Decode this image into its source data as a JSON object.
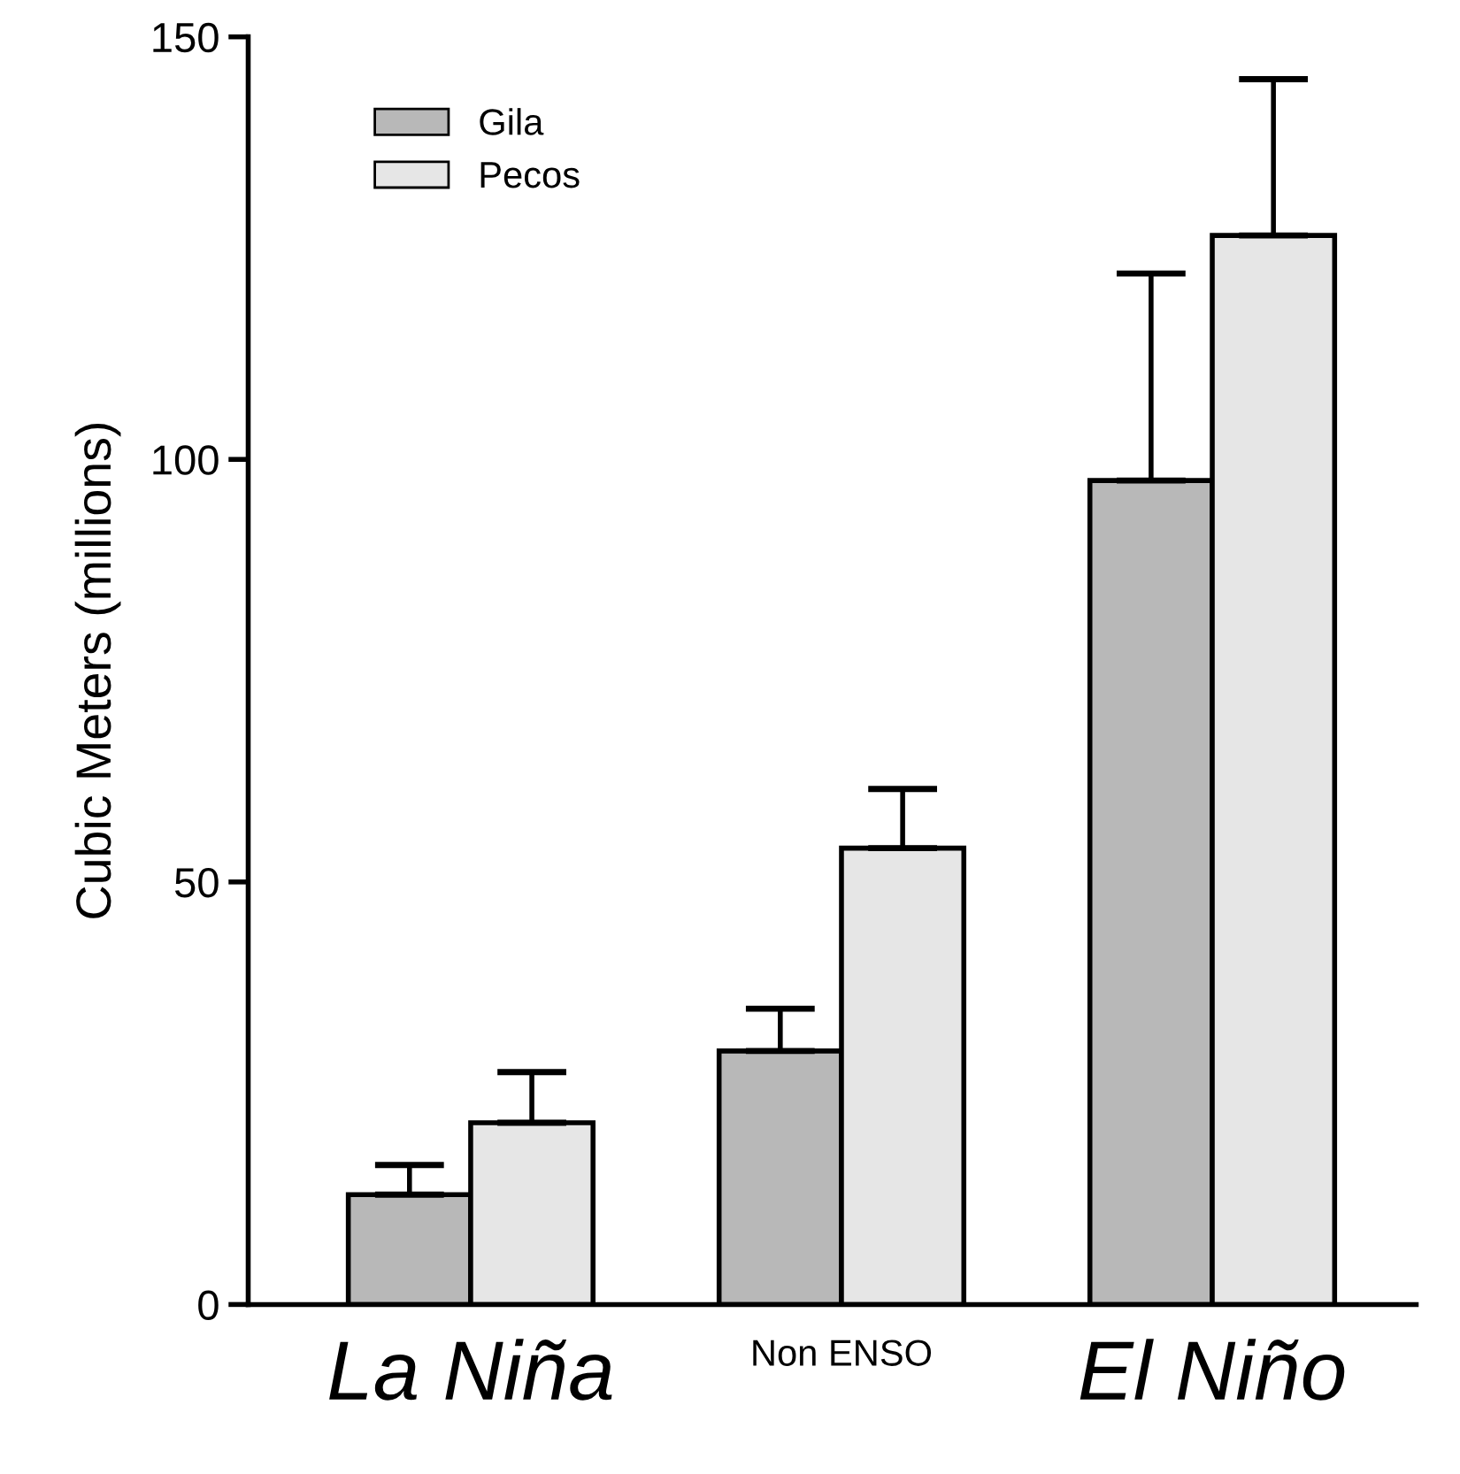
{
  "chart_data": {
    "type": "bar",
    "ylabel": "Cubic Meters (millions)",
    "categories": [
      "La Niña",
      "Non ENSO",
      "El Niño"
    ],
    "series": [
      {
        "name": "Gila",
        "color": "#b8b8b8",
        "values": [
          13,
          30,
          97.5
        ],
        "errors": [
          [
            13,
            16.5
          ],
          [
            30,
            35
          ],
          [
            97.5,
            122
          ]
        ]
      },
      {
        "name": "Pecos",
        "color": "#e6e6e6",
        "values": [
          21.5,
          54,
          126.5
        ],
        "errors": [
          [
            21.5,
            27.5
          ],
          [
            54,
            61
          ],
          [
            126.5,
            145
          ]
        ]
      }
    ],
    "ylim": [
      0,
      150
    ],
    "yticks": [
      0,
      50,
      100,
      150
    ],
    "grid": false,
    "legend": "top left"
  }
}
